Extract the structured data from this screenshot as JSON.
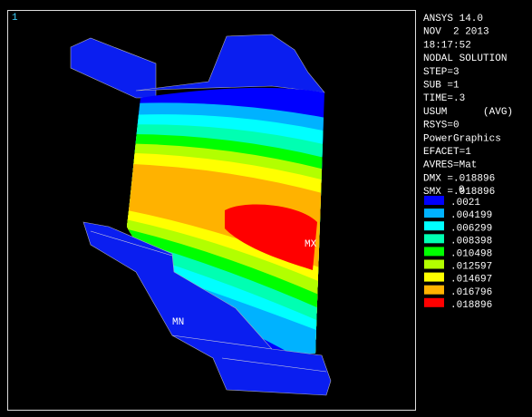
{
  "viewport": {
    "window_number": "1",
    "max_label": "MX",
    "min_label": "MN"
  },
  "info": [
    "ANSYS 14.0",
    "NOV  2 2013",
    "18:17:52",
    "NODAL SOLUTION",
    "STEP=3",
    "SUB =1",
    "TIME=.3",
    "USUM      (AVG)",
    "RSYS=0",
    "PowerGraphics",
    "EFACET=1",
    "AVRES=Mat",
    "DMX =.018896",
    "SMX =.018896"
  ],
  "legend": {
    "labels": [
      "0",
      ".0021",
      ".004199",
      ".006299",
      ".008398",
      ".010498",
      ".012597",
      ".014697",
      ".016796",
      ".018896"
    ],
    "colors": [
      "#0000ff",
      "#00b2ff",
      "#00ffff",
      "#00ffb2",
      "#00ff00",
      "#b2ff00",
      "#ffff00",
      "#ffb200",
      "#ff0000"
    ]
  }
}
